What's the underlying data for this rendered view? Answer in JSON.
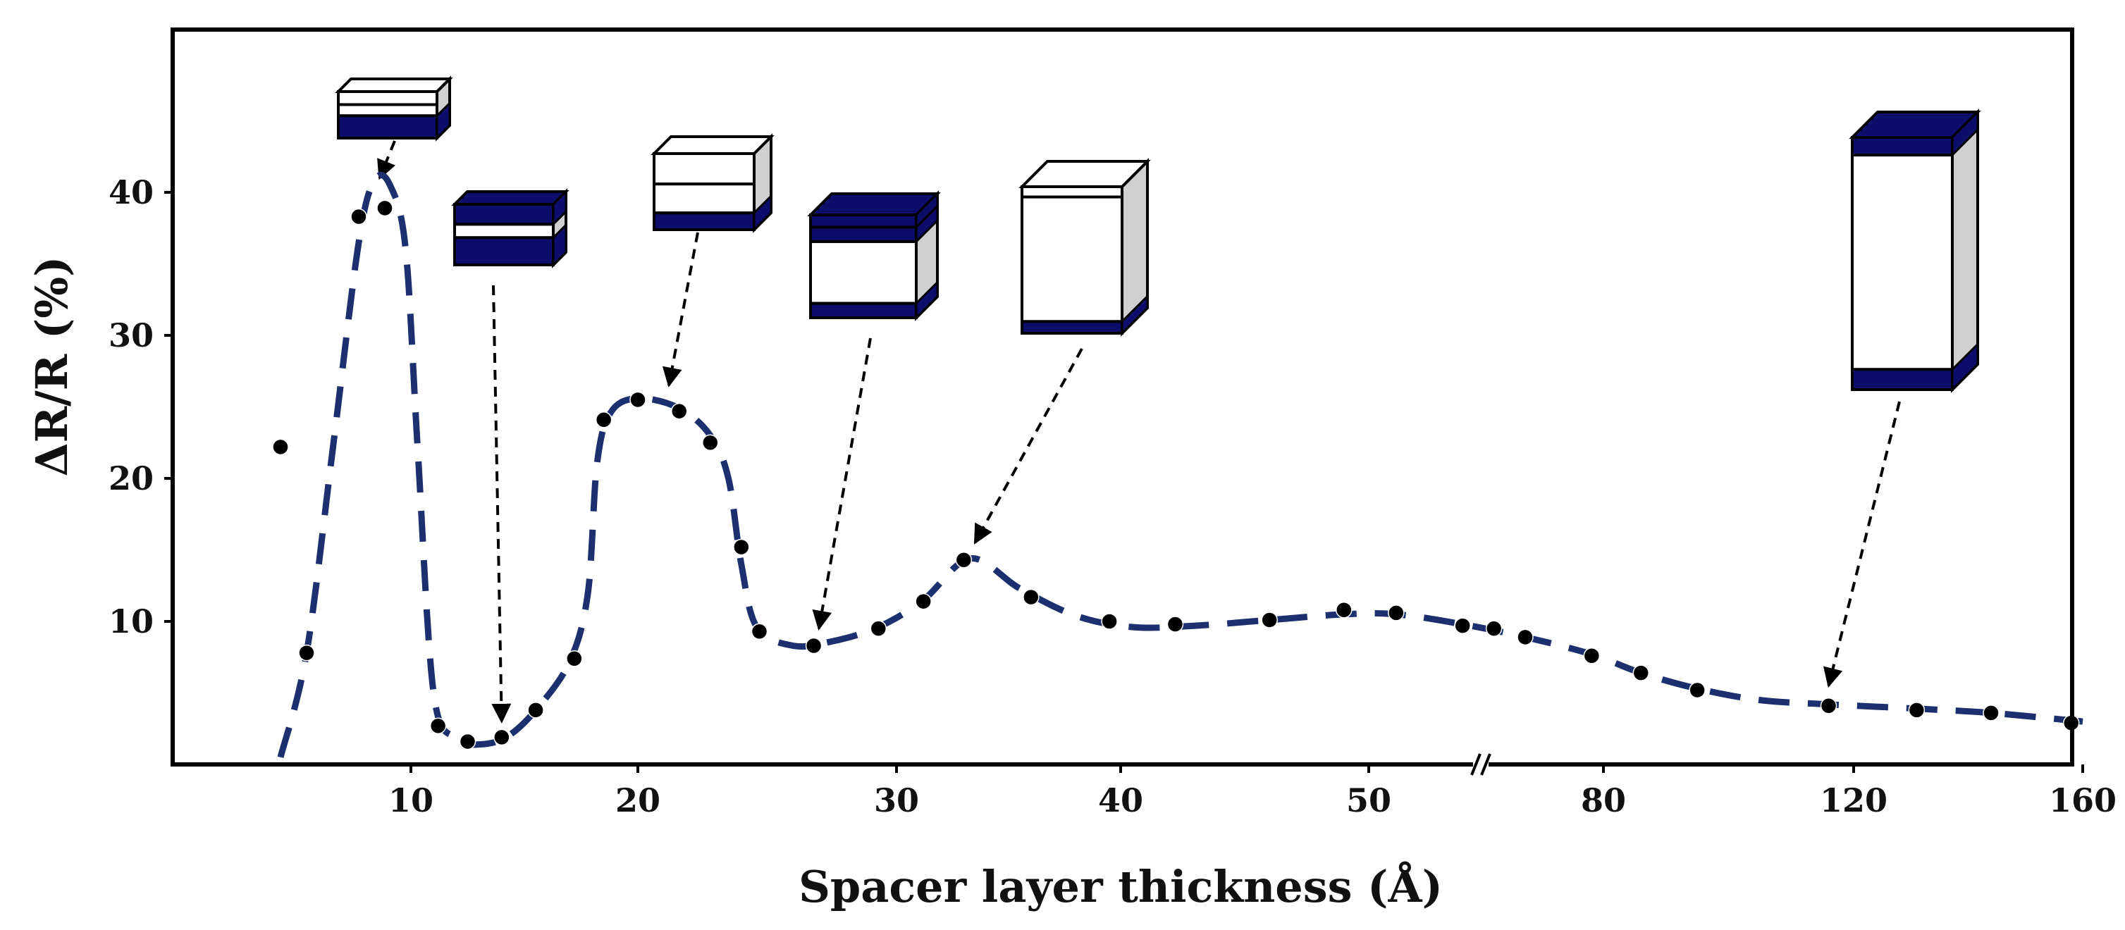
{
  "chart_data": {
    "type": "line",
    "xlabel": "Spacer layer thickness (Å)",
    "ylabel": "ΔR/R (%)",
    "x_ticks": [
      "10",
      "20",
      "30",
      "40",
      "50",
      "80",
      "120",
      "160"
    ],
    "y_ticks": [
      "10",
      "20",
      "30",
      "40"
    ],
    "ylim": [
      0,
      50
    ],
    "x_axis_note": "axis break between 50 and 80; ticks are not linearly spaced",
    "grid": false,
    "legend": "none",
    "line_style": "dashed",
    "colors": {
      "line": "#1c2f6e",
      "points": "#000000",
      "layer_dark": "#0d0d6b",
      "layer_white": "#ffffff",
      "layer_side": "#d0d0d0"
    },
    "series": [
      {
        "points": [
          {
            "x": 5,
            "y": 22.2
          },
          {
            "x": 6,
            "y": 7.8
          },
          {
            "x": 8,
            "y": 38.3
          },
          {
            "x": 9,
            "y": 38.9
          },
          {
            "x": 11.2,
            "y": 2.7
          },
          {
            "x": 12.5,
            "y": 1.6
          },
          {
            "x": 14,
            "y": 1.9
          },
          {
            "x": 15.5,
            "y": 3.8
          },
          {
            "x": 17.2,
            "y": 7.4
          },
          {
            "x": 18.5,
            "y": 24.1
          },
          {
            "x": 20,
            "y": 25.5
          },
          {
            "x": 21.6,
            "y": 24.7
          },
          {
            "x": 22.8,
            "y": 22.5
          },
          {
            "x": 24,
            "y": 15.2
          },
          {
            "x": 24.7,
            "y": 9.3
          },
          {
            "x": 26.8,
            "y": 8.3
          },
          {
            "x": 29.3,
            "y": 9.5
          },
          {
            "x": 31.2,
            "y": 11.4
          },
          {
            "x": 33,
            "y": 14.3
          },
          {
            "x": 36,
            "y": 11.7
          },
          {
            "x": 39.5,
            "y": 10
          },
          {
            "x": 42.2,
            "y": 9.8
          },
          {
            "x": 46,
            "y": 10.1
          },
          {
            "x": 49,
            "y": 10.8
          },
          {
            "x": 53.5,
            "y": 10.6
          },
          {
            "x": 62,
            "y": 9.7
          },
          {
            "x": 66,
            "y": 9.5
          },
          {
            "x": 70,
            "y": 8.9
          },
          {
            "x": 78.5,
            "y": 7.6
          },
          {
            "x": 86,
            "y": 6.4
          },
          {
            "x": 95,
            "y": 5.2
          },
          {
            "x": 116,
            "y": 4.1
          },
          {
            "x": 131,
            "y": 3.8
          },
          {
            "x": 144,
            "y": 3.6
          },
          {
            "x": 158,
            "y": 2.9
          }
        ],
        "curve": [
          {
            "x": 5,
            "y": 0.5
          },
          {
            "x": 6,
            "y": 7.8
          },
          {
            "x": 7,
            "y": 22
          },
          {
            "x": 8,
            "y": 36.5
          },
          {
            "x": 8.6,
            "y": 40.8
          },
          {
            "x": 9.2,
            "y": 40.5
          },
          {
            "x": 9.8,
            "y": 36
          },
          {
            "x": 10.3,
            "y": 22
          },
          {
            "x": 11,
            "y": 5
          },
          {
            "x": 12,
            "y": 1.8
          },
          {
            "x": 13,
            "y": 1.4
          },
          {
            "x": 14.2,
            "y": 1.9
          },
          {
            "x": 15.5,
            "y": 3.8
          },
          {
            "x": 17,
            "y": 7.2
          },
          {
            "x": 17.8,
            "y": 12
          },
          {
            "x": 18.2,
            "y": 21
          },
          {
            "x": 18.8,
            "y": 24.6
          },
          {
            "x": 20,
            "y": 25.6
          },
          {
            "x": 21.6,
            "y": 24.9
          },
          {
            "x": 22.8,
            "y": 23
          },
          {
            "x": 23.5,
            "y": 20
          },
          {
            "x": 24,
            "y": 14
          },
          {
            "x": 24.6,
            "y": 9.6
          },
          {
            "x": 26,
            "y": 8.3
          },
          {
            "x": 27.5,
            "y": 8.6
          },
          {
            "x": 29.3,
            "y": 9.6
          },
          {
            "x": 31.2,
            "y": 11.5
          },
          {
            "x": 33.3,
            "y": 14.4
          },
          {
            "x": 35.5,
            "y": 12.3
          },
          {
            "x": 38,
            "y": 10.4
          },
          {
            "x": 40.5,
            "y": 9.6
          },
          {
            "x": 43,
            "y": 9.7
          },
          {
            "x": 46,
            "y": 10.1
          },
          {
            "x": 49,
            "y": 10.5
          },
          {
            "x": 53.5,
            "y": 10.5
          },
          {
            "x": 62,
            "y": 9.8
          },
          {
            "x": 70,
            "y": 8.9
          },
          {
            "x": 78.5,
            "y": 7.7
          },
          {
            "x": 86,
            "y": 6.4
          },
          {
            "x": 95,
            "y": 5.3
          },
          {
            "x": 105,
            "y": 4.5
          },
          {
            "x": 116,
            "y": 4.2
          },
          {
            "x": 131,
            "y": 3.9
          },
          {
            "x": 144,
            "y": 3.6
          },
          {
            "x": 160,
            "y": 3.0
          }
        ]
      }
    ],
    "insets": [
      {
        "depicts": "trilayer stack with thin spacer",
        "points_to_x": 8.8,
        "points_to_y": 41
      },
      {
        "depicts": "trilayer stack with thin spacer",
        "points_to_x": 14,
        "points_to_y": 3
      },
      {
        "depicts": "trilayer stack with medium spacer",
        "points_to_x": 21.2,
        "points_to_y": 26.5
      },
      {
        "depicts": "trilayer stack with medium spacer",
        "points_to_x": 27,
        "points_to_y": 9.5
      },
      {
        "depicts": "trilayer stack with thick spacer",
        "points_to_x": 33.5,
        "points_to_y": 15.5
      },
      {
        "depicts": "trilayer stack with very thick spacer",
        "points_to_x": 116,
        "points_to_y": 5.5
      }
    ]
  }
}
